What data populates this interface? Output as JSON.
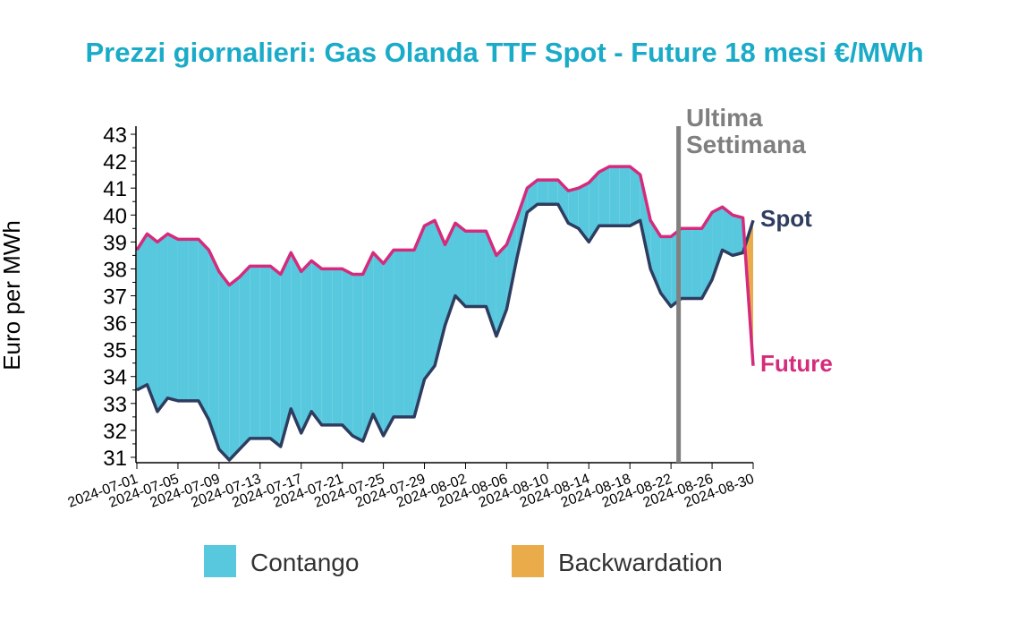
{
  "colors": {
    "title": "#1aabc8",
    "spot": "#2e3d5f",
    "future": "#d42b7c",
    "contango": "#58c8de",
    "backwardation": "#eaac4a",
    "marker": "#808080"
  },
  "chart_data": {
    "type": "line",
    "title": "Prezzi giornalieri: Gas Olanda TTF Spot - Future 18 mesi €/MWh",
    "ylabel": "Euro per MWh",
    "xlabel": "",
    "ylim": [
      30.8,
      43.3
    ],
    "yticks": [
      "31",
      "32",
      "33",
      "34",
      "35",
      "36",
      "37",
      "38",
      "39",
      "40",
      "41",
      "42",
      "43"
    ],
    "xticks": [
      "2024-07-01",
      "2024-07-05",
      "2024-07-09",
      "2024-07-13",
      "2024-07-17",
      "2024-07-21",
      "2024-07-25",
      "2024-07-29",
      "2024-08-02",
      "2024-08-06",
      "2024-08-10",
      "2024-08-14",
      "2024-08-18",
      "2024-08-22",
      "2024-08-26",
      "2024-08-30"
    ],
    "x": [
      "2024-07-01",
      "2024-07-02",
      "2024-07-03",
      "2024-07-04",
      "2024-07-05",
      "2024-07-06",
      "2024-07-07",
      "2024-07-08",
      "2024-07-09",
      "2024-07-10",
      "2024-07-11",
      "2024-07-12",
      "2024-07-13",
      "2024-07-14",
      "2024-07-15",
      "2024-07-16",
      "2024-07-17",
      "2024-07-18",
      "2024-07-19",
      "2024-07-20",
      "2024-07-21",
      "2024-07-22",
      "2024-07-23",
      "2024-07-24",
      "2024-07-25",
      "2024-07-26",
      "2024-07-27",
      "2024-07-28",
      "2024-07-29",
      "2024-07-30",
      "2024-07-31",
      "2024-08-01",
      "2024-08-02",
      "2024-08-03",
      "2024-08-04",
      "2024-08-05",
      "2024-08-06",
      "2024-08-07",
      "2024-08-08",
      "2024-08-09",
      "2024-08-10",
      "2024-08-11",
      "2024-08-12",
      "2024-08-13",
      "2024-08-14",
      "2024-08-15",
      "2024-08-16",
      "2024-08-17",
      "2024-08-18",
      "2024-08-19",
      "2024-08-20",
      "2024-08-21",
      "2024-08-22",
      "2024-08-23",
      "2024-08-24",
      "2024-08-25",
      "2024-08-26",
      "2024-08-27",
      "2024-08-28",
      "2024-08-29",
      "2024-08-30"
    ],
    "series": [
      {
        "name": "Spot",
        "values": [
          33.5,
          33.7,
          32.7,
          33.2,
          33.1,
          33.1,
          33.1,
          32.4,
          31.3,
          30.9,
          31.3,
          31.7,
          31.7,
          31.7,
          31.4,
          32.8,
          31.9,
          32.7,
          32.2,
          32.2,
          32.2,
          31.8,
          31.6,
          32.6,
          31.8,
          32.5,
          32.5,
          32.5,
          33.9,
          34.4,
          35.9,
          37.0,
          36.6,
          36.6,
          36.6,
          35.5,
          36.5,
          38.4,
          40.1,
          40.4,
          40.4,
          40.4,
          39.7,
          39.5,
          39.0,
          39.6,
          39.6,
          39.6,
          39.6,
          39.8,
          38.0,
          37.1,
          36.6,
          36.9,
          36.9,
          36.9,
          37.6,
          38.7,
          38.5,
          38.6,
          39.8
        ]
      },
      {
        "name": "Future",
        "values": [
          38.7,
          39.3,
          39.0,
          39.3,
          39.1,
          39.1,
          39.1,
          38.7,
          37.9,
          37.4,
          37.7,
          38.1,
          38.1,
          38.1,
          37.8,
          38.6,
          37.9,
          38.3,
          38.0,
          38.0,
          38.0,
          37.8,
          37.8,
          38.6,
          38.2,
          38.7,
          38.7,
          38.7,
          39.6,
          39.8,
          38.9,
          39.7,
          39.4,
          39.4,
          39.4,
          38.5,
          38.9,
          39.9,
          41.0,
          41.3,
          41.3,
          41.3,
          40.9,
          41.0,
          41.2,
          41.6,
          41.8,
          41.8,
          41.8,
          41.5,
          39.8,
          39.2,
          39.2,
          39.5,
          39.5,
          39.5,
          40.1,
          40.3,
          40.0,
          39.9,
          34.4
        ]
      }
    ],
    "annotations": {
      "marker_line_date": "2024-08-23",
      "marker_line_label_1": "Ultima",
      "marker_line_label_2": "Settimana",
      "spot_label": "Spot",
      "future_label": "Future"
    },
    "legend": {
      "placement": "bottom",
      "items": [
        {
          "name": "Contango",
          "color": "#58c8de"
        },
        {
          "name": "Backwardation",
          "color": "#eaac4a"
        }
      ]
    },
    "grid": false
  }
}
